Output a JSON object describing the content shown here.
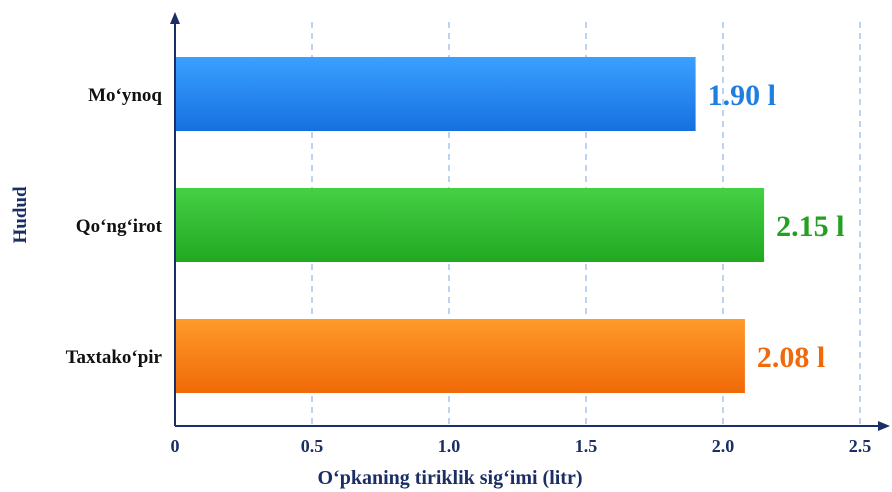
{
  "chart_data": {
    "type": "bar",
    "orientation": "horizontal",
    "title": "",
    "xlabel": "O‘pkaning tiriklik sig‘imi (litr)",
    "ylabel": "Hudud",
    "categories": [
      "Mo‘ynoq",
      "Qo‘ng‘irot",
      "Taxtako‘pir"
    ],
    "values": [
      1.9,
      2.15,
      2.08
    ],
    "value_labels": [
      "1.90 l",
      "2.15 l",
      "2.08 l"
    ],
    "xlim": [
      0,
      2.5
    ],
    "xticks": [
      0,
      0.5,
      1.0,
      1.5,
      2.0,
      2.5
    ],
    "xtick_labels": [
      "0",
      "0.5",
      "1.0",
      "1.5",
      "2.0",
      "2.5"
    ],
    "grid": "vertical dashed",
    "colors": {
      "bars": [
        "#1e88f0",
        "#2fba2f",
        "#f57c10"
      ],
      "labels": [
        "#1f7fe0",
        "#23a023",
        "#ef6a0c"
      ],
      "axis": "#1b2f66",
      "grid": "#8fb8e8"
    }
  }
}
